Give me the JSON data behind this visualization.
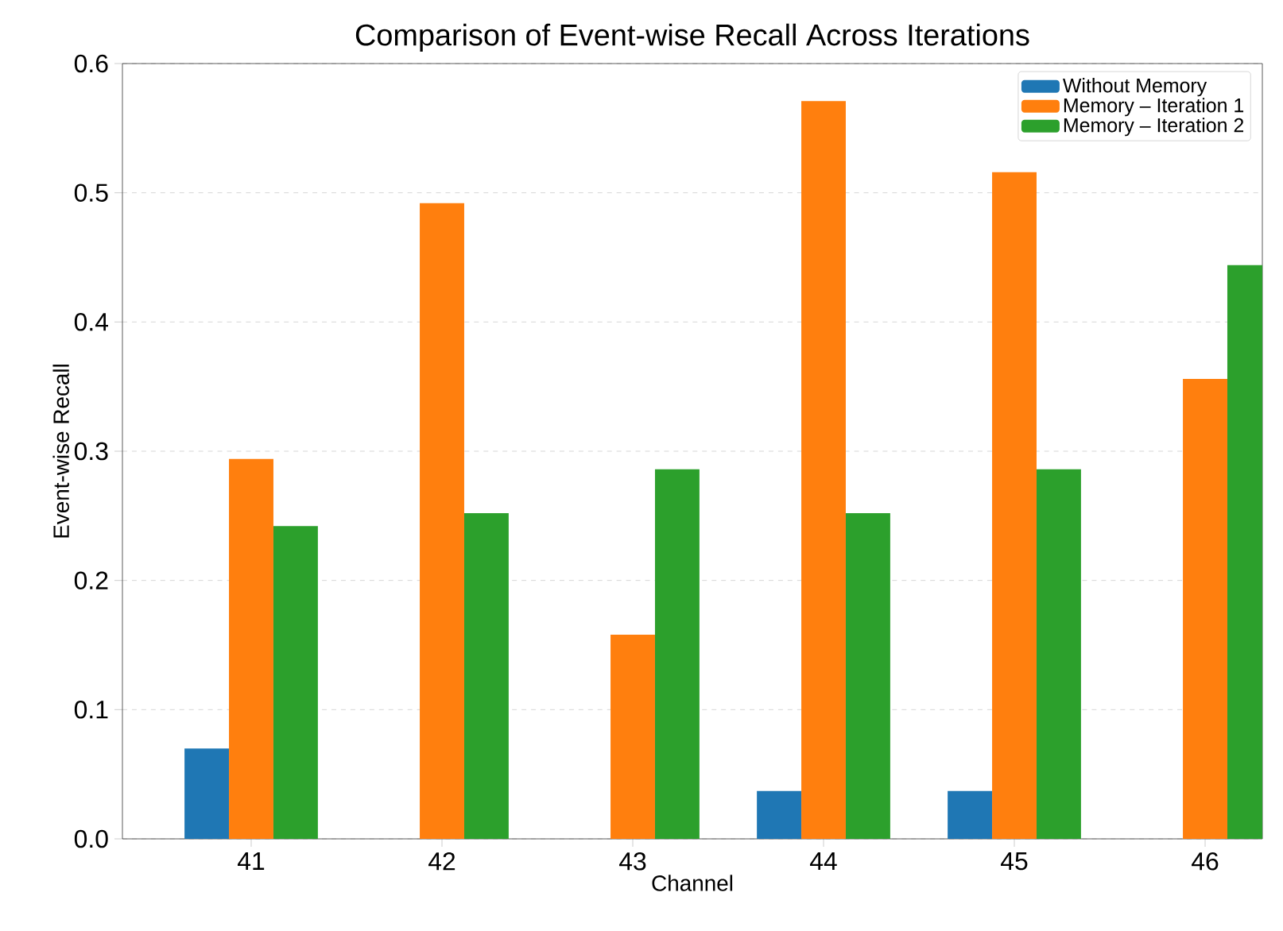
{
  "chart_data": {
    "type": "bar",
    "title": "Comparison of Event-wise Recall Across Iterations",
    "xlabel": "Channel",
    "ylabel": "Event-wise Recall",
    "categories": [
      "41",
      "42",
      "43",
      "44",
      "45",
      "46"
    ],
    "series": [
      {
        "name": "Without Memory",
        "color": "#1f77b4",
        "values": [
          0.07,
          0,
          0,
          0.037,
          0.037,
          0
        ]
      },
      {
        "name": "Memory – Iteration 1",
        "color": "#ff7f0e",
        "values": [
          0.294,
          0.492,
          0.158,
          0.571,
          0.516,
          0.356
        ]
      },
      {
        "name": "Memory – Iteration 2",
        "color": "#2ca02c",
        "values": [
          0.242,
          0.252,
          0.286,
          0.252,
          0.286,
          0.444
        ]
      }
    ],
    "ylim": [
      0,
      0.6
    ],
    "yticks": [
      {
        "value": 0,
        "label": "0.0"
      },
      {
        "value": 0.1,
        "label": "0.1"
      },
      {
        "value": 0.2,
        "label": "0.2"
      },
      {
        "value": 0.3,
        "label": "0.3"
      },
      {
        "value": 0.4,
        "label": "0.4"
      },
      {
        "value": 0.5,
        "label": "0.5"
      },
      {
        "value": 0.6,
        "label": "0.6"
      }
    ],
    "grid": "y",
    "legend": "top right"
  }
}
